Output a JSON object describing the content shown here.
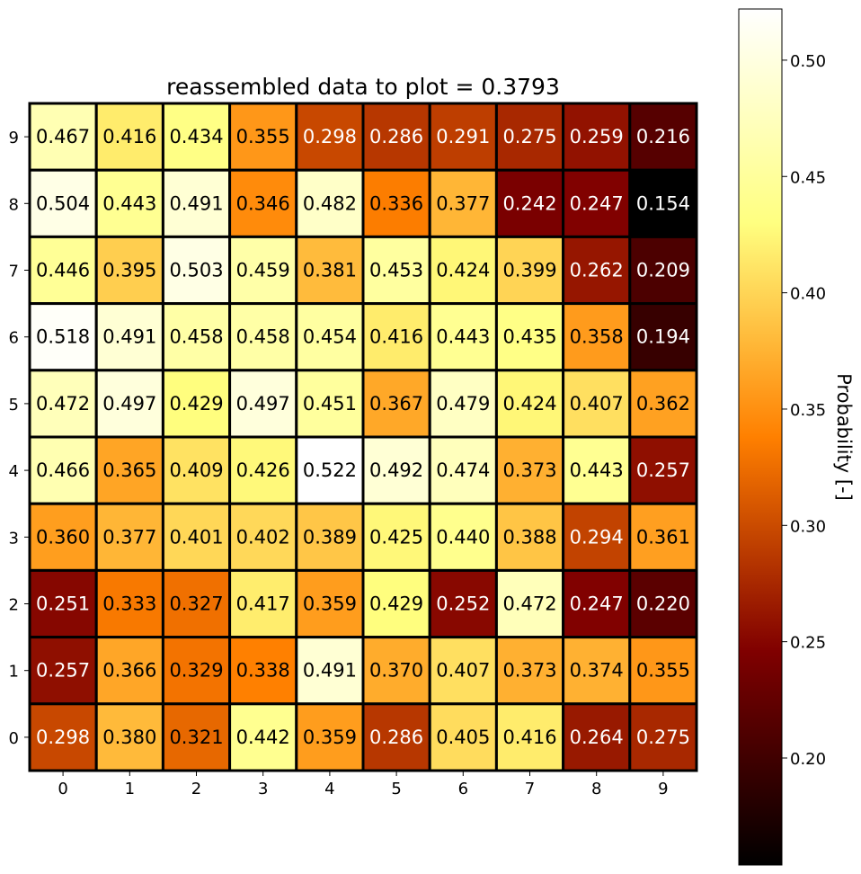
{
  "chart_data": {
    "type": "heatmap",
    "title": "reassembled data to plot = 0.3793",
    "colorbar_label": "Probability [-]",
    "colormap": "afmhot",
    "x_ticks": [
      "0",
      "1",
      "2",
      "3",
      "4",
      "5",
      "6",
      "7",
      "8",
      "9"
    ],
    "y_ticks": [
      "0",
      "1",
      "2",
      "3",
      "4",
      "5",
      "6",
      "7",
      "8",
      "9"
    ],
    "color_range": [
      0.154,
      0.522
    ],
    "colorbar_ticks": [
      "0.20",
      "0.25",
      "0.30",
      "0.35",
      "0.40",
      "0.45",
      "0.50"
    ],
    "rows_top_to_bottom": [
      {
        "y": "9",
        "values": [
          "0.467",
          "0.416",
          "0.434",
          "0.355",
          "0.298",
          "0.286",
          "0.291",
          "0.275",
          "0.259",
          "0.216"
        ]
      },
      {
        "y": "8",
        "values": [
          "0.504",
          "0.443",
          "0.491",
          "0.346",
          "0.482",
          "0.336",
          "0.377",
          "0.242",
          "0.247",
          "0.154"
        ]
      },
      {
        "y": "7",
        "values": [
          "0.446",
          "0.395",
          "0.503",
          "0.459",
          "0.381",
          "0.453",
          "0.424",
          "0.399",
          "0.262",
          "0.209"
        ]
      },
      {
        "y": "6",
        "values": [
          "0.518",
          "0.491",
          "0.458",
          "0.458",
          "0.454",
          "0.416",
          "0.443",
          "0.435",
          "0.358",
          "0.194"
        ]
      },
      {
        "y": "5",
        "values": [
          "0.472",
          "0.497",
          "0.429",
          "0.497",
          "0.451",
          "0.367",
          "0.479",
          "0.424",
          "0.407",
          "0.362"
        ]
      },
      {
        "y": "4",
        "values": [
          "0.466",
          "0.365",
          "0.409",
          "0.426",
          "0.522",
          "0.492",
          "0.474",
          "0.373",
          "0.443",
          "0.257"
        ]
      },
      {
        "y": "3",
        "values": [
          "0.360",
          "0.377",
          "0.401",
          "0.402",
          "0.389",
          "0.425",
          "0.440",
          "0.388",
          "0.294",
          "0.361"
        ]
      },
      {
        "y": "2",
        "values": [
          "0.251",
          "0.333",
          "0.327",
          "0.417",
          "0.359",
          "0.429",
          "0.252",
          "0.472",
          "0.247",
          "0.220"
        ]
      },
      {
        "y": "1",
        "values": [
          "0.257",
          "0.366",
          "0.329",
          "0.338",
          "0.491",
          "0.370",
          "0.407",
          "0.373",
          "0.374",
          "0.355"
        ]
      },
      {
        "y": "0",
        "values": [
          "0.298",
          "0.380",
          "0.321",
          "0.442",
          "0.359",
          "0.286",
          "0.405",
          "0.416",
          "0.264",
          "0.275"
        ]
      }
    ]
  }
}
